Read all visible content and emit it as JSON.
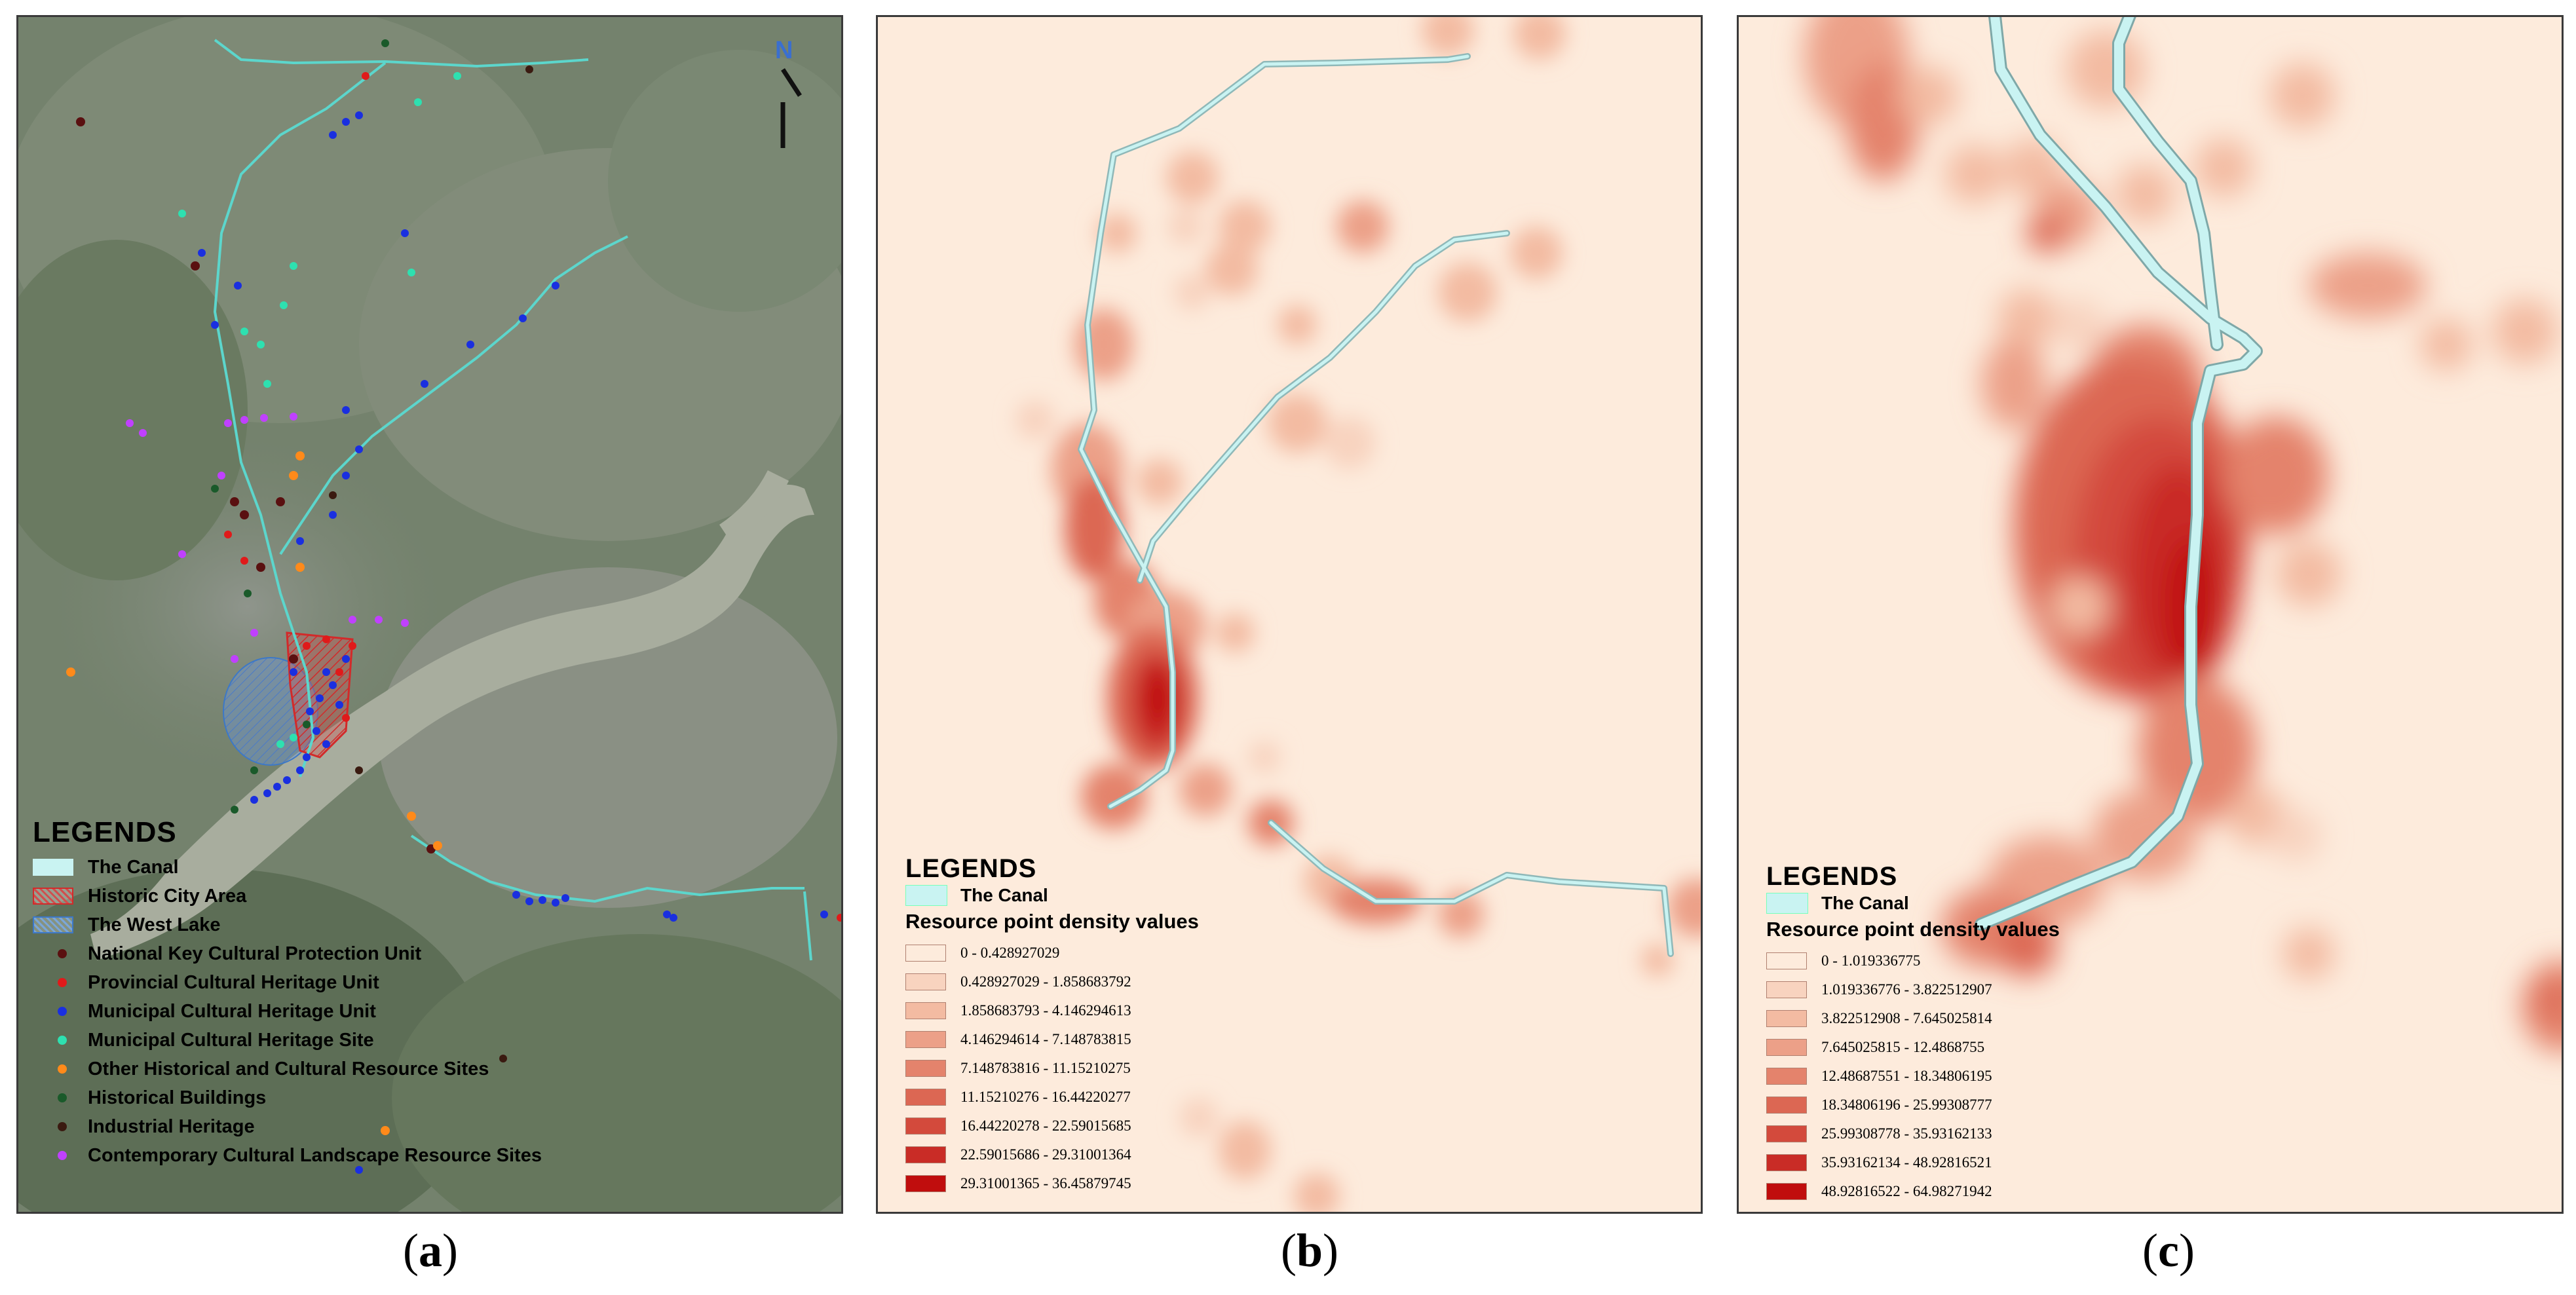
{
  "panel_a": {
    "caption": "a",
    "north_label": "N",
    "legend": {
      "title": "LEGENDS",
      "items": [
        {
          "label": "The Canal",
          "type": "fill",
          "color": "#c9f3f2",
          "border": "#c9f3f2"
        },
        {
          "label": "Historic City Area",
          "type": "hatch",
          "color": "#d24d4d",
          "border": "#d22a2a"
        },
        {
          "label": "The West Lake",
          "type": "hatch",
          "color": "#7aa6d8",
          "border": "#3c78c8"
        },
        {
          "label": "National Key Cultural Protection Unit",
          "type": "dot",
          "color": "#5a1010"
        },
        {
          "label": "Provincial Cultural Heritage Unit",
          "type": "dot",
          "color": "#e01a1a"
        },
        {
          "label": "Municipal  Cultural Heritage Unit",
          "type": "dot",
          "color": "#1a2fe0"
        },
        {
          "label": "Municipal  Cultural Heritage Site",
          "type": "dot",
          "color": "#2ee0b0"
        },
        {
          "label": "Other Historical and Cultural Resource Sites",
          "type": "dot",
          "color": "#ff8a1a"
        },
        {
          "label": "Historical Buildings",
          "type": "dot",
          "color": "#1a5a2a"
        },
        {
          "label": "Industrial Heritage",
          "type": "dot",
          "color": "#3a1a10"
        },
        {
          "label": "Contemporary Cultural Landscape Resource Sites",
          "type": "dot",
          "color": "#c040ff"
        }
      ]
    }
  },
  "panel_b": {
    "caption": "b",
    "legend": {
      "title": "LEGENDS",
      "canal_label": "The Canal",
      "subtitle": "Resource point density values",
      "classes": [
        {
          "label": "0 - 0.428927029",
          "color": "#fdebdc"
        },
        {
          "label": "0.428927029 - 1.858683792",
          "color": "#f8d3bf"
        },
        {
          "label": "1.858683793 - 4.146294613",
          "color": "#f3bba2"
        },
        {
          "label": "4.146294614 - 7.148783815",
          "color": "#eca088"
        },
        {
          "label": "7.148783816 - 11.15210275",
          "color": "#e4836c"
        },
        {
          "label": "11.15210276 - 16.44220277",
          "color": "#dc6753"
        },
        {
          "label": "16.44220278 - 22.59015685",
          "color": "#d34a3c"
        },
        {
          "label": "22.59015686 - 29.31001364",
          "color": "#c92c26"
        },
        {
          "label": "29.31001365 - 36.45879745",
          "color": "#c00d0d"
        }
      ]
    }
  },
  "panel_c": {
    "caption": "c",
    "legend": {
      "title": "LEGENDS",
      "canal_label": "The Canal",
      "subtitle": "Resource point density values",
      "classes": [
        {
          "label": "0 - 1.019336775",
          "color": "#fdebdc"
        },
        {
          "label": "1.019336776 - 3.822512907",
          "color": "#f8d3bf"
        },
        {
          "label": "3.822512908 - 7.645025814",
          "color": "#f3bba2"
        },
        {
          "label": "7.645025815 - 12.4868755",
          "color": "#eca088"
        },
        {
          "label": "12.48687551 - 18.34806195",
          "color": "#e4836c"
        },
        {
          "label": "18.34806196 - 25.99308777",
          "color": "#dc6753"
        },
        {
          "label": "25.99308778 - 35.93162133",
          "color": "#d34a3c"
        },
        {
          "label": "35.93162134 - 48.92816521",
          "color": "#c92c26"
        },
        {
          "label": "48.92816522 - 64.98271942",
          "color": "#c00d0d"
        }
      ]
    }
  }
}
